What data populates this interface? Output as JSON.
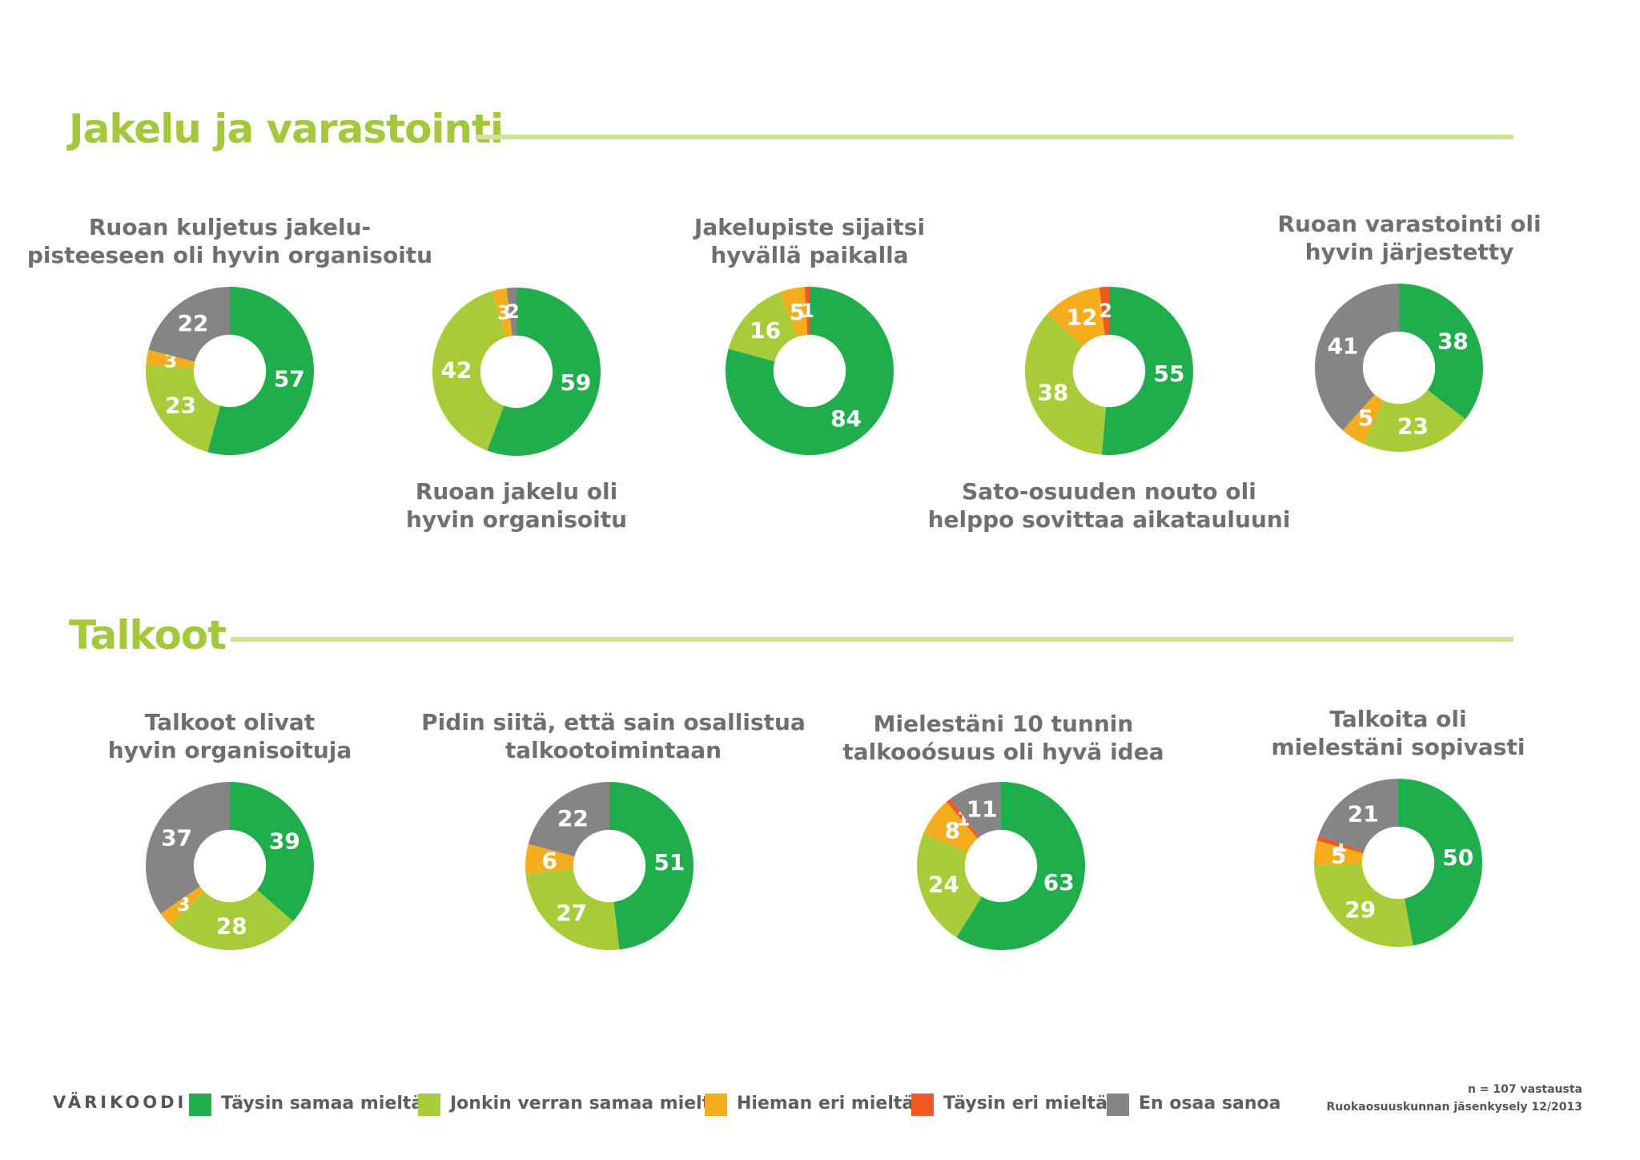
{
  "sections": [
    {
      "title": "Jakelu ja varastointi"
    },
    {
      "title": "Talkoot"
    }
  ],
  "colors": {
    "taysin_samaa": "#1fae4b",
    "jonkin_verran": "#a7cc38",
    "hieman_eri": "#f6ad1d",
    "taysin_eri": "#ef5a24",
    "en_osaa": "#858587",
    "label_text": "#ffffff"
  },
  "legend": {
    "heading": "VÄRIKOODI",
    "items": [
      {
        "label": "Täysin samaa mieltä",
        "color": "#1fae4b"
      },
      {
        "label": "Jonkin verran samaa mieltä",
        "color": "#a7cc38"
      },
      {
        "label": "Hieman eri mieltä",
        "color": "#f6ad1d"
      },
      {
        "label": "Täysin eri mieltä",
        "color": "#ef5a24"
      },
      {
        "label": "En osaa sanoa",
        "color": "#858587"
      }
    ]
  },
  "footnote": {
    "line1": "n = 107 vastausta",
    "line2": "Ruokaosuuskunnan jäsenkysely 12/2013"
  },
  "chart_data": [
    {
      "type": "pie",
      "section": "Jakelu ja varastointi",
      "title_lines": [
        "Ruoan kuljetus jakelu-",
        "pisteeseen oli hyvin organisoitu"
      ],
      "categories": [
        "Täysin samaa mieltä",
        "Jonkin verran samaa mieltä",
        "Hieman eri mieltä",
        "Täysin eri mieltä",
        "En osaa sanoa"
      ],
      "values": [
        57,
        23,
        3,
        0,
        22
      ]
    },
    {
      "type": "pie",
      "section": "Jakelu ja varastointi",
      "title_lines": [
        "Ruoan jakelu oli",
        "hyvin organisoitu"
      ],
      "categories": [
        "Täysin samaa mieltä",
        "Jonkin verran samaa mieltä",
        "Hieman eri mieltä",
        "Täysin eri mieltä",
        "En osaa sanoa"
      ],
      "values": [
        59,
        42,
        3,
        0,
        2
      ]
    },
    {
      "type": "pie",
      "section": "Jakelu ja varastointi",
      "title_lines": [
        "Jakelupiste sijaitsi",
        "hyvällä paikalla"
      ],
      "categories": [
        "Täysin samaa mieltä",
        "Jonkin verran samaa mieltä",
        "Hieman eri mieltä",
        "Täysin eri mieltä",
        "En osaa sanoa"
      ],
      "values": [
        84,
        16,
        5,
        1,
        0
      ]
    },
    {
      "type": "pie",
      "section": "Jakelu ja varastointi",
      "title_lines": [
        "Sato-osuuden nouto oli",
        "helppo sovittaa aikatauluuni"
      ],
      "categories": [
        "Täysin samaa mieltä",
        "Jonkin verran samaa mieltä",
        "Hieman eri mieltä",
        "Täysin eri mieltä",
        "En osaa sanoa"
      ],
      "values": [
        55,
        38,
        12,
        2,
        0
      ]
    },
    {
      "type": "pie",
      "section": "Jakelu ja varastointi",
      "title_lines": [
        "Ruoan varastointi oli",
        "hyvin järjestetty"
      ],
      "categories": [
        "Täysin samaa mieltä",
        "Jonkin verran samaa mieltä",
        "Hieman eri mieltä",
        "Täysin eri mieltä",
        "En osaa sanoa"
      ],
      "values": [
        38,
        23,
        5,
        0,
        41
      ]
    },
    {
      "type": "pie",
      "section": "Talkoot",
      "title_lines": [
        "Talkoot olivat",
        "hyvin organisoituja"
      ],
      "categories": [
        "Täysin samaa mieltä",
        "Jonkin verran samaa mieltä",
        "Hieman eri mieltä",
        "Täysin eri mieltä",
        "En osaa sanoa"
      ],
      "values": [
        39,
        28,
        3,
        0,
        37
      ]
    },
    {
      "type": "pie",
      "section": "Talkoot",
      "title_lines": [
        "Pidin siitä, että sain osallistua",
        "talkootoimintaan"
      ],
      "categories": [
        "Täysin samaa mieltä",
        "Jonkin verran samaa mieltä",
        "Hieman eri mieltä",
        "Täysin eri mieltä",
        "En osaa sanoa"
      ],
      "values": [
        51,
        27,
        6,
        0,
        22
      ]
    },
    {
      "type": "pie",
      "section": "Talkoot",
      "title_lines": [
        "Mielestäni 10 tunnin",
        "talkooósuus oli hyvä idea"
      ],
      "categories": [
        "Täysin samaa mieltä",
        "Jonkin verran samaa mieltä",
        "Hieman eri mieltä",
        "Täysin eri mieltä",
        "En osaa sanoa"
      ],
      "values": [
        63,
        24,
        8,
        1,
        11
      ]
    },
    {
      "type": "pie",
      "section": "Talkoot",
      "title_lines": [
        "Talkoita oli",
        "mielestäni sopivasti"
      ],
      "categories": [
        "Täysin samaa mieltä",
        "Jonkin verran samaa mieltä",
        "Hieman eri mieltä",
        "Täysin eri mieltä",
        "En osaa sanoa"
      ],
      "values": [
        50,
        29,
        5,
        1,
        21
      ]
    }
  ]
}
